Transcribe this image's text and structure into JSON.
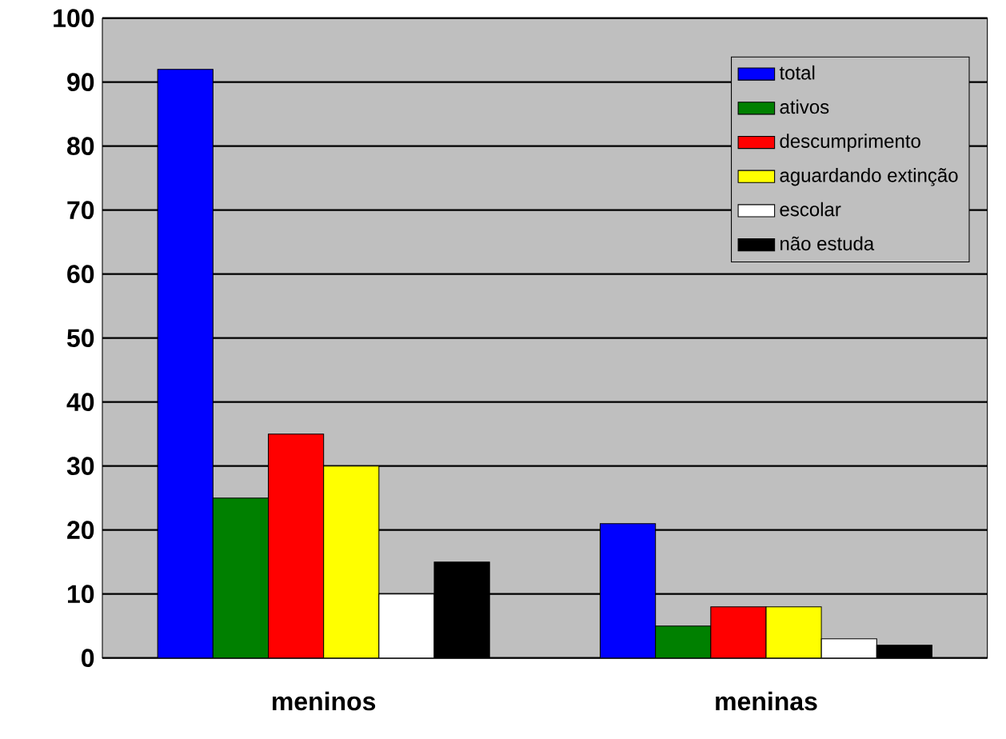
{
  "chart_data": {
    "type": "bar",
    "categories": [
      "meninos",
      "meninas"
    ],
    "series": [
      {
        "name": "total",
        "color": "#0000ff",
        "values": [
          92,
          21
        ]
      },
      {
        "name": "ativos",
        "color": "#008000",
        "values": [
          25,
          5
        ]
      },
      {
        "name": "descumprimento",
        "color": "#ff0000",
        "values": [
          35,
          8
        ]
      },
      {
        "name": "aguardando extinção",
        "color": "#ffff00",
        "values": [
          30,
          8
        ]
      },
      {
        "name": "escolar",
        "color": "#ffffff",
        "values": [
          10,
          3
        ]
      },
      {
        "name": "não estuda",
        "color": "#000000",
        "values": [
          15,
          2
        ]
      }
    ],
    "ylim": [
      0,
      100
    ],
    "yticks": [
      0,
      10,
      20,
      30,
      40,
      50,
      60,
      70,
      80,
      90,
      100
    ],
    "grid": "y",
    "legend": "top right"
  }
}
